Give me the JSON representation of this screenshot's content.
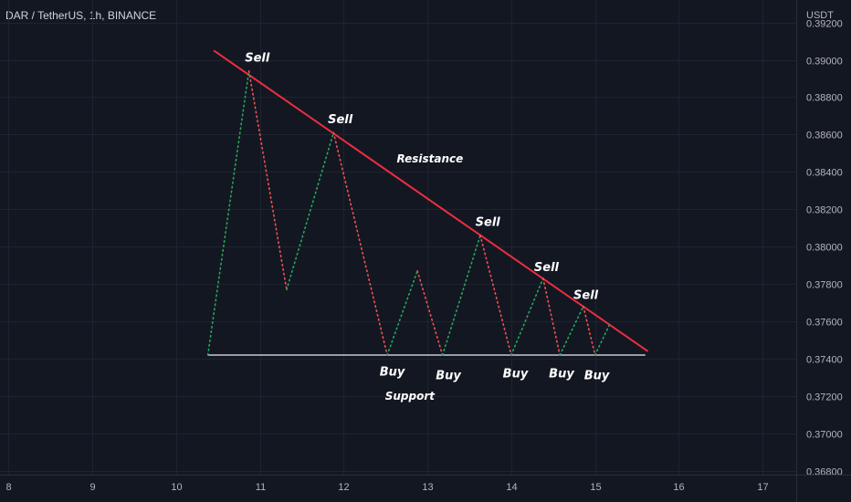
{
  "chart_data": {
    "type": "line",
    "symbol_title": "DAR / TetherUS, 1h, BINANCE",
    "currency": "USDT",
    "xlim": [
      7.9,
      17.4
    ],
    "ylim": [
      0.3678,
      0.3932
    ],
    "x_ticks": [
      8,
      9,
      10,
      11,
      12,
      13,
      14,
      15,
      16,
      17
    ],
    "y_ticks": [
      0.368,
      0.37,
      0.372,
      0.374,
      0.376,
      0.378,
      0.38,
      0.382,
      0.384,
      0.386,
      0.388,
      0.39,
      0.392
    ],
    "y_tick_labels": [
      "0.36800",
      "0.37000",
      "0.37200",
      "0.37400",
      "0.37600",
      "0.37800",
      "0.38000",
      "0.38200",
      "0.38400",
      "0.38600",
      "0.38800",
      "0.39000",
      "0.39200"
    ],
    "grid": true,
    "path": [
      {
        "x": 10.38,
        "y": 0.3742
      },
      {
        "x": 10.87,
        "y": 0.3894
      },
      {
        "x": 11.32,
        "y": 0.3777
      },
      {
        "x": 11.88,
        "y": 0.3861
      },
      {
        "x": 12.52,
        "y": 0.3742
      },
      {
        "x": 12.88,
        "y": 0.3787
      },
      {
        "x": 13.18,
        "y": 0.3742
      },
      {
        "x": 13.63,
        "y": 0.3806
      },
      {
        "x": 14.0,
        "y": 0.3742
      },
      {
        "x": 14.38,
        "y": 0.3783
      },
      {
        "x": 14.58,
        "y": 0.3742
      },
      {
        "x": 14.86,
        "y": 0.3768
      },
      {
        "x": 15.0,
        "y": 0.3742
      },
      {
        "x": 15.18,
        "y": 0.3759
      }
    ],
    "up_color": "#26a65b",
    "down_color": "#ef5350",
    "resistance_line": {
      "x1": 10.45,
      "y1": 0.3905,
      "x2": 15.63,
      "y2": 0.3744,
      "color": "#ec2d3f"
    },
    "support_line": {
      "x1": 10.38,
      "y1": 0.3742,
      "x2": 15.6,
      "y2": 0.3742,
      "color": "#c8cacf"
    },
    "annotations": [
      {
        "text": "Sell",
        "x": 10.97,
        "y": 0.3899,
        "kind": "sell"
      },
      {
        "text": "Sell",
        "x": 11.96,
        "y": 0.3866,
        "kind": "sell"
      },
      {
        "text": "Sell",
        "x": 13.72,
        "y": 0.3811,
        "kind": "sell"
      },
      {
        "text": "Sell",
        "x": 14.42,
        "y": 0.3787,
        "kind": "sell"
      },
      {
        "text": "Sell",
        "x": 14.89,
        "y": 0.3772,
        "kind": "sell"
      },
      {
        "text": "Resistance",
        "x": 13.03,
        "y": 0.3845,
        "kind": "label"
      },
      {
        "text": "Buy",
        "x": 12.58,
        "y": 0.3731,
        "kind": "buy"
      },
      {
        "text": "Buy",
        "x": 13.25,
        "y": 0.3729,
        "kind": "buy"
      },
      {
        "text": "Buy",
        "x": 14.05,
        "y": 0.373,
        "kind": "buy"
      },
      {
        "text": "Buy",
        "x": 14.6,
        "y": 0.373,
        "kind": "buy"
      },
      {
        "text": "Buy",
        "x": 15.02,
        "y": 0.3729,
        "kind": "buy"
      },
      {
        "text": "Support",
        "x": 12.79,
        "y": 0.3718,
        "kind": "label"
      }
    ]
  }
}
